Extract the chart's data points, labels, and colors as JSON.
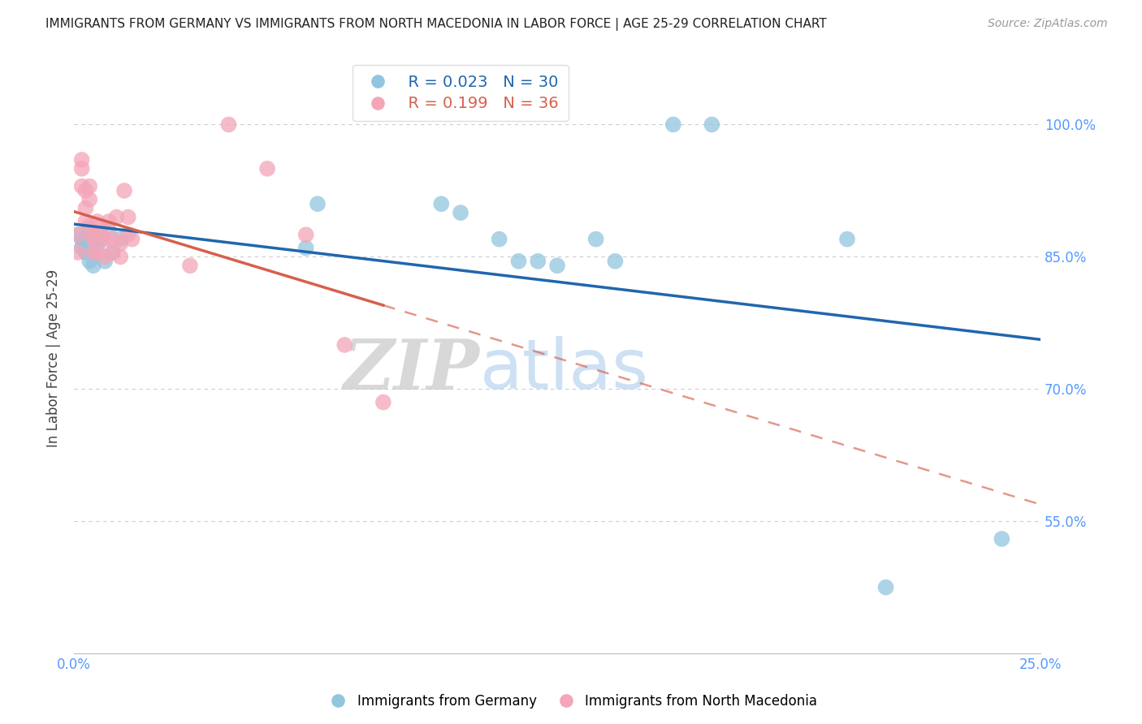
{
  "title": "IMMIGRANTS FROM GERMANY VS IMMIGRANTS FROM NORTH MACEDONIA IN LABOR FORCE | AGE 25-29 CORRELATION CHART",
  "source": "Source: ZipAtlas.com",
  "xlabel_label": "Immigrants from Germany",
  "ylabel_label": "In Labor Force | Age 25-29",
  "xmin": 0.0,
  "xmax": 0.25,
  "ymin": 0.4,
  "ymax": 1.07,
  "ytick_positions": [
    0.55,
    0.7,
    0.85,
    1.0
  ],
  "ytick_labels": [
    "55.0%",
    "70.0%",
    "85.0%",
    "100.0%"
  ],
  "xtick_positions": [
    0.0,
    0.05,
    0.1,
    0.15,
    0.2,
    0.25
  ],
  "xtick_labels": [
    "0.0%",
    "",
    "",
    "",
    "",
    "25.0%"
  ],
  "germany_R": 0.023,
  "germany_N": 30,
  "macedonia_R": 0.199,
  "macedonia_N": 36,
  "blue_color": "#92c5de",
  "pink_color": "#f4a5b8",
  "trend_blue": "#2166ac",
  "trend_pink": "#d6604d",
  "germany_x": [
    0.001,
    0.002,
    0.002,
    0.003,
    0.003,
    0.004,
    0.004,
    0.005,
    0.005,
    0.006,
    0.007,
    0.008,
    0.009,
    0.01,
    0.012,
    0.06,
    0.063,
    0.095,
    0.1,
    0.11,
    0.115,
    0.12,
    0.125,
    0.135,
    0.14,
    0.155,
    0.165,
    0.2,
    0.21,
    0.24
  ],
  "germany_y": [
    0.875,
    0.87,
    0.86,
    0.865,
    0.855,
    0.88,
    0.845,
    0.865,
    0.84,
    0.86,
    0.87,
    0.845,
    0.88,
    0.855,
    0.87,
    0.86,
    0.91,
    0.91,
    0.9,
    0.87,
    0.845,
    0.845,
    0.84,
    0.87,
    0.845,
    1.0,
    1.0,
    0.87,
    0.475,
    0.53
  ],
  "macedonia_x": [
    0.001,
    0.001,
    0.002,
    0.002,
    0.002,
    0.003,
    0.003,
    0.003,
    0.004,
    0.004,
    0.004,
    0.005,
    0.005,
    0.005,
    0.006,
    0.006,
    0.007,
    0.007,
    0.008,
    0.008,
    0.009,
    0.01,
    0.01,
    0.011,
    0.012,
    0.012,
    0.013,
    0.014,
    0.014,
    0.015,
    0.03,
    0.04,
    0.05,
    0.06,
    0.07,
    0.08
  ],
  "macedonia_y": [
    0.875,
    0.855,
    0.93,
    0.95,
    0.96,
    0.925,
    0.905,
    0.89,
    0.93,
    0.915,
    0.885,
    0.875,
    0.87,
    0.855,
    0.89,
    0.855,
    0.885,
    0.875,
    0.87,
    0.85,
    0.89,
    0.87,
    0.855,
    0.895,
    0.865,
    0.85,
    0.925,
    0.895,
    0.875,
    0.87,
    0.84,
    1.0,
    0.95,
    0.875,
    0.75,
    0.685
  ],
  "watermark_zip": "ZIP",
  "watermark_atlas": "atlas",
  "background_color": "#ffffff",
  "grid_color": "#cccccc"
}
